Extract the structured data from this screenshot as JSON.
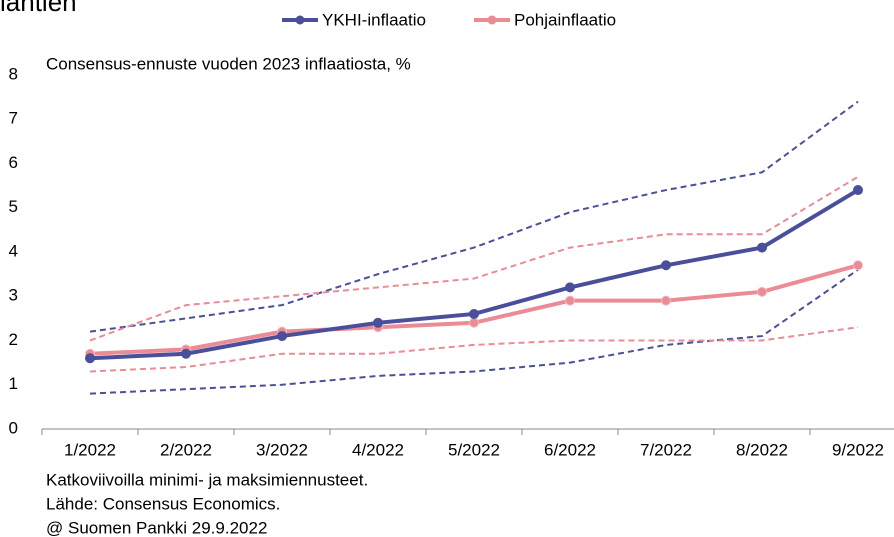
{
  "chart_data": {
    "type": "line",
    "title": "iantien",
    "subtitle": "Consensus-ennuste vuoden 2023 inflaatiosta, %",
    "categories": [
      "1/2022",
      "2/2022",
      "3/2022",
      "4/2022",
      "5/2022",
      "6/2022",
      "7/2022",
      "8/2022",
      "9/2022"
    ],
    "series": [
      {
        "name": "YKHI-inflaatio",
        "color": "#4a4f9a",
        "values": [
          1.6,
          1.7,
          2.1,
          2.4,
          2.6,
          3.2,
          3.7,
          4.1,
          5.4
        ]
      },
      {
        "name": "Pohjainflaatio",
        "color": "#ea8b95",
        "values": [
          1.7,
          1.8,
          2.2,
          2.3,
          2.4,
          2.9,
          2.9,
          3.1,
          3.7
        ]
      }
    ],
    "dashed_series": [
      {
        "color": "#4a4f9a",
        "values": [
          2.2,
          2.5,
          2.8,
          3.5,
          4.1,
          4.9,
          5.4,
          5.8,
          7.4
        ]
      },
      {
        "color": "#4a4f9a",
        "values": [
          0.8,
          0.9,
          1.0,
          1.2,
          1.3,
          1.5,
          1.9,
          2.1,
          3.6
        ]
      },
      {
        "color": "#ea8b95",
        "values": [
          2.0,
          2.8,
          3.0,
          3.2,
          3.4,
          4.1,
          4.4,
          4.4,
          5.7
        ]
      },
      {
        "color": "#ea8b95",
        "values": [
          1.3,
          1.4,
          1.7,
          1.7,
          1.9,
          2.0,
          2.0,
          2.0,
          2.3
        ]
      }
    ],
    "ylim": [
      0,
      8
    ],
    "yticks": [
      0,
      1,
      2,
      3,
      4,
      5,
      6,
      7,
      8
    ],
    "footnotes": [
      "Katkoviivoilla minimi- ja maksimiennusteet.",
      "Lähde: Consensus Economics.",
      "@ Suomen Pankki 29.9.2022"
    ]
  }
}
